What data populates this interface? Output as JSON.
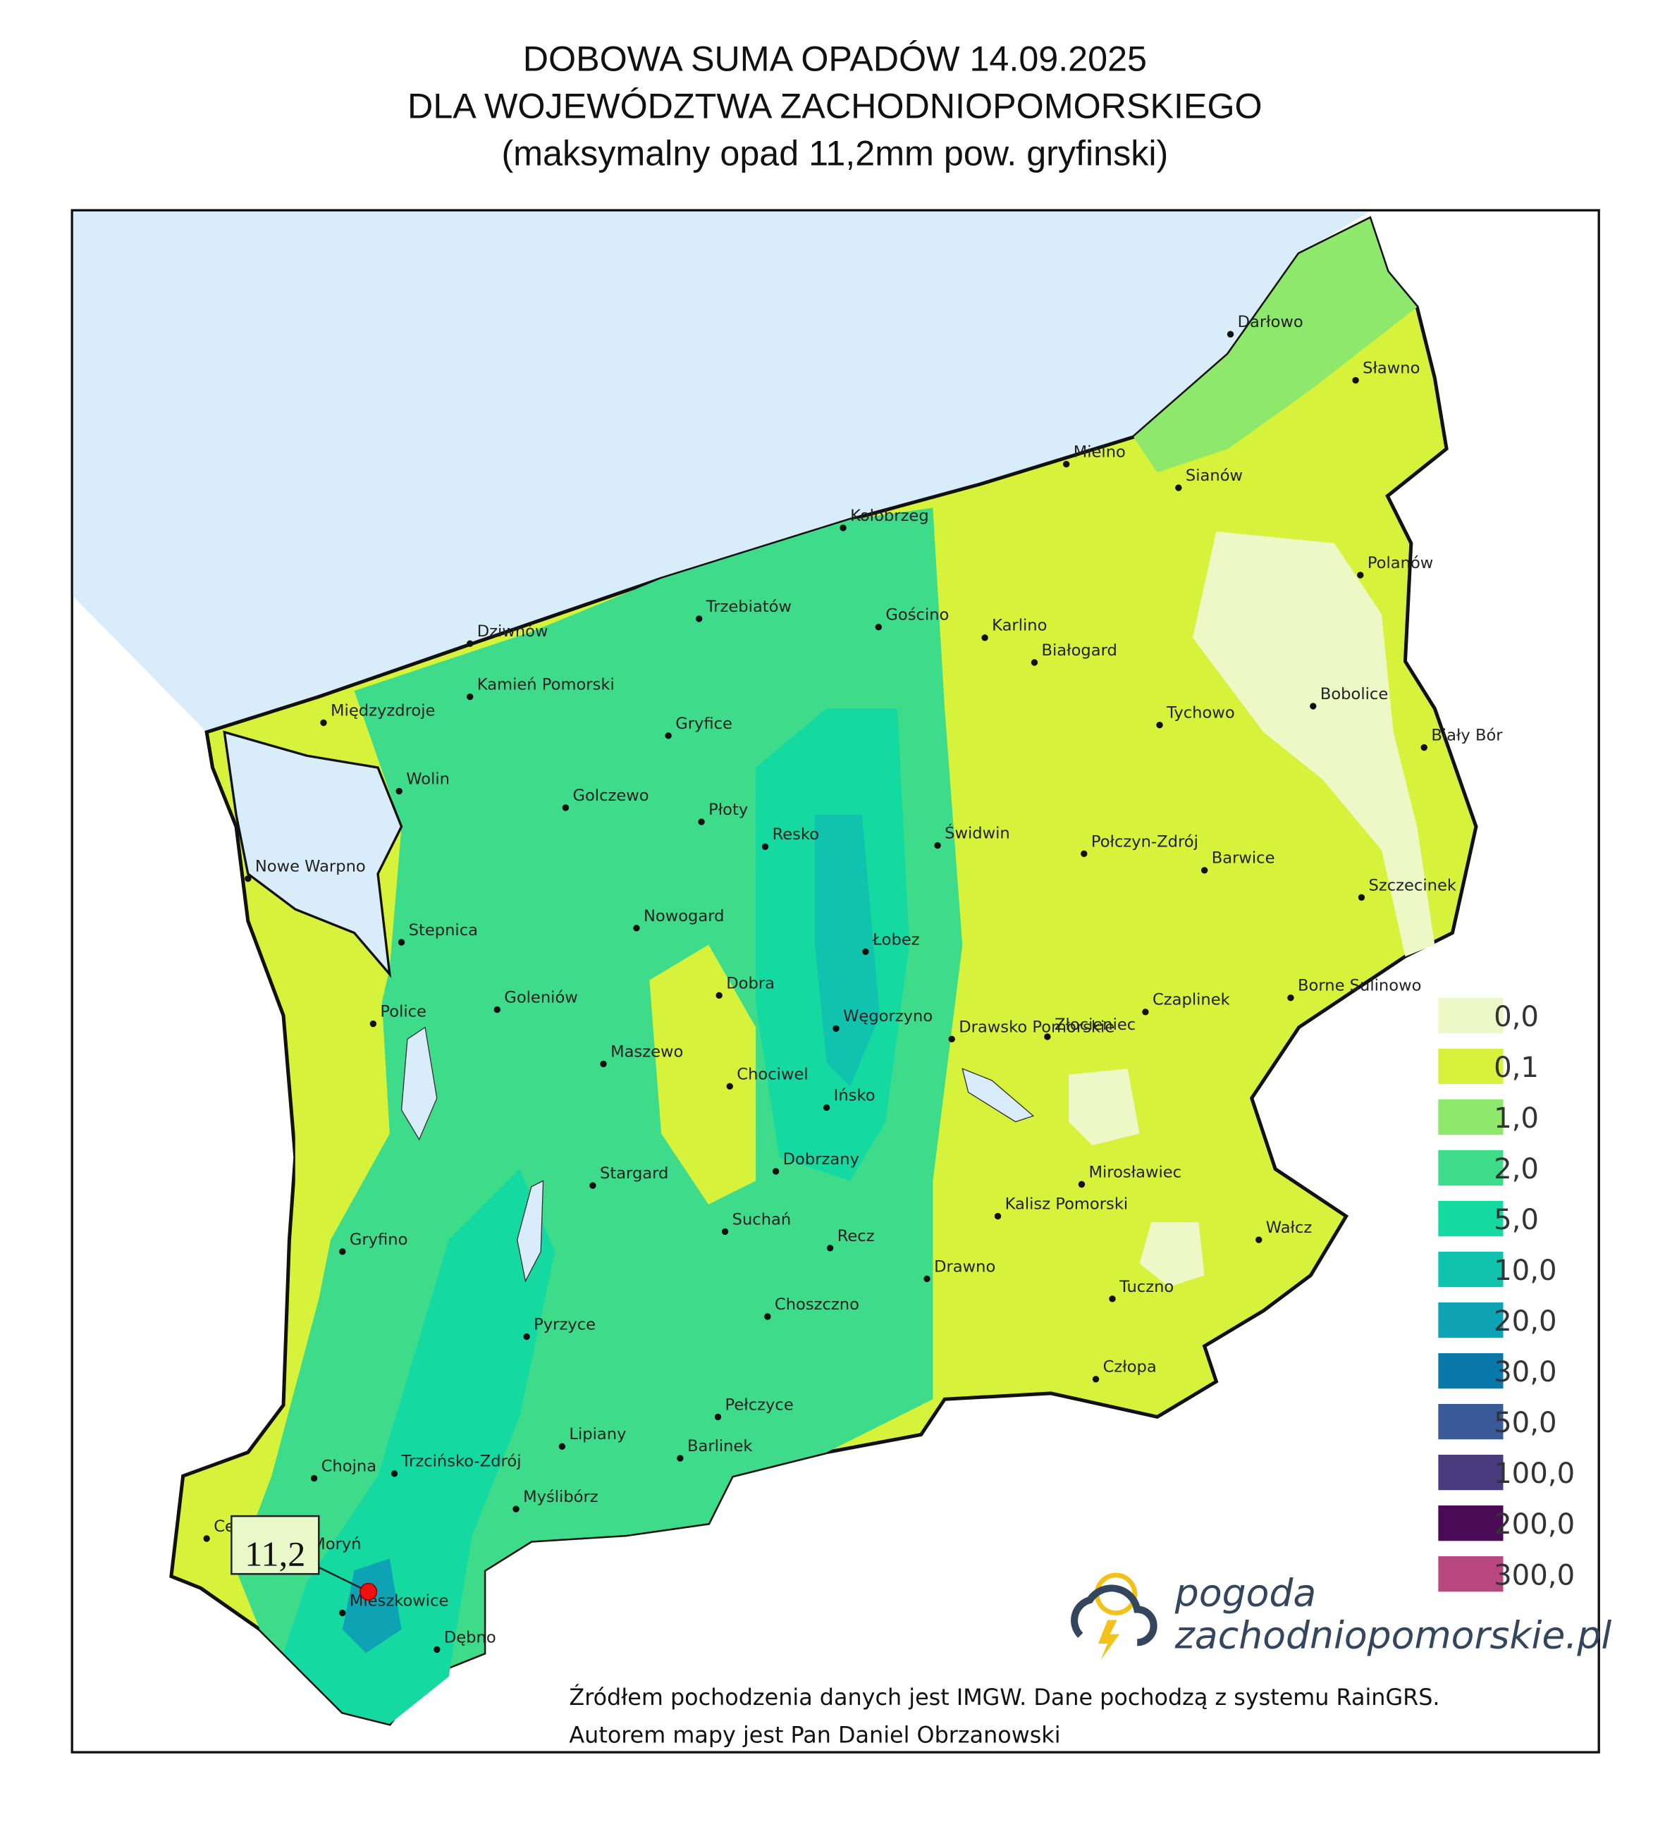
{
  "header": {
    "title": [
      "DOBOWA SUMA OPADÓW 14.09.2025",
      "DLA WOJEWÓDZTWA ZACHODNIOPOMORSKIEGO",
      "(maksymalny opad 11,2mm pow. gryfinski)"
    ]
  },
  "legend": [
    {
      "label": "0,0",
      "color": "#eef7c6"
    },
    {
      "label": "0,1",
      "color": "#d6f23a"
    },
    {
      "label": "1,0",
      "color": "#8ee86b"
    },
    {
      "label": "2,0",
      "color": "#3edc8a"
    },
    {
      "label": "5,0",
      "color": "#14d9a0"
    },
    {
      "label": "10,0",
      "color": "#10c3ae"
    },
    {
      "label": "20,0",
      "color": "#0ea2b5"
    },
    {
      "label": "30,0",
      "color": "#0a78a8"
    },
    {
      "label": "50,0",
      "color": "#3a5a98"
    },
    {
      "label": "100,0",
      "color": "#4a3a7e"
    },
    {
      "label": "200,0",
      "color": "#4a0a56"
    },
    {
      "label": "300,0",
      "color": "#b8477e"
    }
  ],
  "cities": [
    "Darłowo",
    "Sławno",
    "Mielno",
    "Sianów",
    "Kołobrzeg",
    "Polanów",
    "Trzebiatów",
    "Gościno",
    "Karlino",
    "Białogard",
    "Dziwnów",
    "Kamień Pomorski",
    "Bobolice",
    "Międzyzdroje",
    "Tychowo",
    "Gryfice",
    "Biały Bór",
    "Wolin",
    "Golczewo",
    "Płoty",
    "Resko",
    "Świdwin",
    "Połczyn-Zdrój",
    "Barwice",
    "Nowe Warpno",
    "Szczecinek",
    "Nowogard",
    "Stepnica",
    "Łobez",
    "Dobra",
    "Borne Sulinowo",
    "Goleniów",
    "Czaplinek",
    "Police",
    "Węgorzyno",
    "Złocieniec",
    "Drawsko Pomorskie",
    "Maszewo",
    "Chociwel",
    "Ińsko",
    "Dobrzany",
    "Stargard",
    "Mirosławiec",
    "Kalisz Pomorski",
    "Suchań",
    "Wałcz",
    "Gryfino",
    "Recz",
    "Drawno",
    "Tuczno",
    "Choszczno",
    "Pyrzyce",
    "Człopa",
    "Pełczyce",
    "Lipiany",
    "Barlinek",
    "Chojna",
    "Trzcińsko-Zdrój",
    "Myślibórz",
    "Cedynia",
    "Moryń",
    "Mieszkowice",
    "Dębno"
  ],
  "annotation": {
    "label": "11,2"
  },
  "logo": [
    "pogoda",
    "zachodniopomorskie.pl"
  ],
  "source": [
    "Źródłem pochodzenia danych jest IMGW. Dane pochodzą z systemu RainGRS.",
    "Autorem mapy jest Pan Daniel Obrzanowski"
  ]
}
